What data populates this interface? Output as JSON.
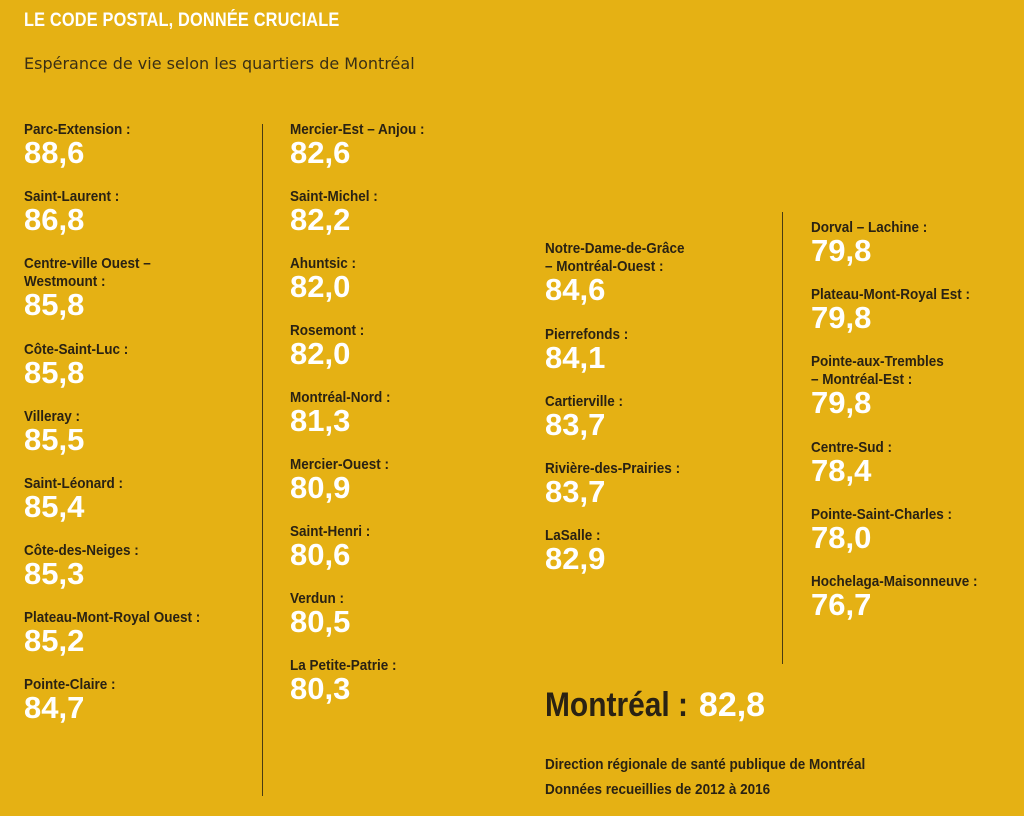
{
  "header": {
    "title": "LE CODE POSTAL, DONNÉE CRUCIALE",
    "subtitle": "Espérance de vie selon les quartiers de Montréal"
  },
  "columns": [
    [
      {
        "name": "Parc-Extension :",
        "value": "88,6"
      },
      {
        "name": "Saint-Laurent :",
        "value": "86,8"
      },
      {
        "name": "Centre-ville Ouest –\nWestmount :",
        "value": "85,8"
      },
      {
        "name": "Côte-Saint-Luc :",
        "value": "85,8"
      },
      {
        "name": "Villeray :",
        "value": "85,5"
      },
      {
        "name": "Saint-Léonard :",
        "value": "85,4"
      },
      {
        "name": "Côte-des-Neiges :",
        "value": "85,3"
      },
      {
        "name": "Plateau-Mont-Royal Ouest :",
        "value": "85,2"
      },
      {
        "name": "Pointe-Claire :",
        "value": "84,7"
      }
    ],
    [
      {
        "name": "Mercier-Est – Anjou :",
        "value": "82,6"
      },
      {
        "name": "Saint-Michel :",
        "value": "82,2"
      },
      {
        "name": "Ahuntsic :",
        "value": "82,0"
      },
      {
        "name": "Rosemont :",
        "value": "82,0"
      },
      {
        "name": "Montréal-Nord :",
        "value": "81,3"
      },
      {
        "name": "Mercier-Ouest :",
        "value": "80,9"
      },
      {
        "name": "Saint-Henri :",
        "value": "80,6"
      },
      {
        "name": "Verdun :",
        "value": "80,5"
      },
      {
        "name": "La Petite-Patrie :",
        "value": "80,3"
      }
    ],
    [
      {
        "name": "Notre-Dame-de-Grâce\n– Montréal-Ouest :",
        "value": "84,6"
      },
      {
        "name": "Pierrefonds :",
        "value": "84,1"
      },
      {
        "name": "Cartierville :",
        "value": "83,7"
      },
      {
        "name": "Rivière-des-Prairies :",
        "value": "83,7"
      },
      {
        "name": "LaSalle :",
        "value": "82,9"
      }
    ],
    [
      {
        "name": "Dorval – Lachine :",
        "value": "79,8"
      },
      {
        "name": "Plateau-Mont-Royal Est :",
        "value": "79,8"
      },
      {
        "name": "Pointe-aux-Trembles\n– Montréal-Est :",
        "value": "79,8"
      },
      {
        "name": "Centre-Sud :",
        "value": "78,4"
      },
      {
        "name": "Pointe-Saint-Charles :",
        "value": "78,0"
      },
      {
        "name": "Hochelaga-Maisonneuve :",
        "value": "76,7"
      }
    ]
  ],
  "overall": {
    "label": "Montréal :",
    "value": "82,8"
  },
  "source": {
    "line1": "Direction régionale de santé publique de Montréal",
    "line2": "Données recueillies de 2012 à 2016"
  },
  "colors": {
    "background": "#E5B114",
    "value_text": "#ffffff",
    "label_text": "#2a2213"
  }
}
